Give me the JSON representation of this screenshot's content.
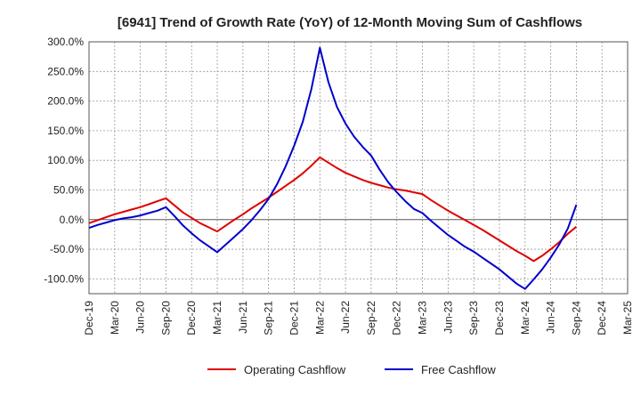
{
  "chart_data": {
    "type": "line",
    "title": "[6941]  Trend of Growth Rate (YoY) of 12-Month Moving Sum of Cashflows",
    "xlabel": "",
    "ylabel": "",
    "x_tick_labels": [
      "Dec-19",
      "Mar-20",
      "Jun-20",
      "Sep-20",
      "Dec-20",
      "Mar-21",
      "Jun-21",
      "Sep-21",
      "Dec-21",
      "Mar-22",
      "Jun-22",
      "Sep-22",
      "Dec-22",
      "Mar-23",
      "Jun-23",
      "Sep-23",
      "Dec-23",
      "Mar-24",
      "Jun-24",
      "Sep-24",
      "Dec-24",
      "Mar-25"
    ],
    "y_ticks": [
      300,
      250,
      200,
      150,
      100,
      50,
      0,
      -50,
      -100
    ],
    "y_tick_labels": [
      "300.0%",
      "250.0%",
      "200.0%",
      "150.0%",
      "100.0%",
      "50.0%",
      "0.0%",
      "-50.0%",
      "-100.0%"
    ],
    "ylim": [
      -125,
      300
    ],
    "grid": true,
    "legend_position": "bottom",
    "series": [
      {
        "name": "Operating Cashflow",
        "color": "#e00000",
        "x": [
          "Dec-19",
          "Jan-20",
          "Feb-20",
          "Mar-20",
          "Apr-20",
          "May-20",
          "Jun-20",
          "Jul-20",
          "Aug-20",
          "Sep-20",
          "Oct-20",
          "Nov-20",
          "Dec-20",
          "Jan-21",
          "Feb-21",
          "Mar-21",
          "Apr-21",
          "May-21",
          "Jun-21",
          "Jul-21",
          "Aug-21",
          "Sep-21",
          "Oct-21",
          "Nov-21",
          "Dec-21",
          "Jan-22",
          "Feb-22",
          "Mar-22",
          "Apr-22",
          "May-22",
          "Jun-22",
          "Jul-22",
          "Aug-22",
          "Sep-22",
          "Oct-22",
          "Nov-22",
          "Dec-22",
          "Jan-23",
          "Feb-23",
          "Mar-23",
          "Apr-23",
          "May-23",
          "Jun-23",
          "Jul-23",
          "Aug-23",
          "Sep-23",
          "Oct-23",
          "Nov-23",
          "Dec-23",
          "Jan-24",
          "Feb-24",
          "Mar-24",
          "Apr-24",
          "May-24",
          "Jun-24",
          "Jul-24",
          "Aug-24",
          "Sep-24"
        ],
        "values": [
          -6,
          -1,
          4,
          9,
          13,
          17,
          21,
          26,
          31,
          36,
          24,
          12,
          3,
          -6,
          -13,
          -20,
          -10,
          0,
          9,
          19,
          28,
          37,
          47,
          57,
          67,
          78,
          91,
          105,
          96,
          87,
          79,
          73,
          67,
          62,
          58,
          54,
          51,
          49,
          46,
          43,
          33,
          24,
          15,
          7,
          -1,
          -9,
          -17,
          -26,
          -35,
          -44,
          -53,
          -61,
          -70,
          -61,
          -50,
          -38,
          -24,
          -12
        ]
      },
      {
        "name": "Free Cashflow",
        "color": "#0000cc",
        "x": [
          "Dec-19",
          "Jan-20",
          "Feb-20",
          "Mar-20",
          "Apr-20",
          "May-20",
          "Jun-20",
          "Jul-20",
          "Aug-20",
          "Sep-20",
          "Oct-20",
          "Nov-20",
          "Dec-20",
          "Jan-21",
          "Feb-21",
          "Mar-21",
          "Apr-21",
          "May-21",
          "Jun-21",
          "Jul-21",
          "Aug-21",
          "Sep-21",
          "Oct-21",
          "Nov-21",
          "Dec-21",
          "Jan-22",
          "Feb-22",
          "Mar-22",
          "Apr-22",
          "May-22",
          "Jun-22",
          "Jul-22",
          "Aug-22",
          "Sep-22",
          "Oct-22",
          "Nov-22",
          "Dec-22",
          "Jan-23",
          "Feb-23",
          "Mar-23",
          "Apr-23",
          "May-23",
          "Jun-23",
          "Jul-23",
          "Aug-23",
          "Sep-23",
          "Oct-23",
          "Nov-23",
          "Dec-23",
          "Jan-24",
          "Feb-24",
          "Mar-24",
          "Apr-24",
          "May-24",
          "Jun-24",
          "Jul-24",
          "Aug-24",
          "Sep-24"
        ],
        "values": [
          -14,
          -9,
          -5,
          -1,
          2,
          4,
          7,
          11,
          15,
          21,
          6,
          -10,
          -23,
          -35,
          -45,
          -55,
          -42,
          -29,
          -16,
          -1,
          16,
          35,
          60,
          90,
          125,
          165,
          220,
          290,
          232,
          190,
          162,
          140,
          123,
          108,
          84,
          63,
          46,
          31,
          18,
          11,
          -2,
          -14,
          -26,
          -36,
          -46,
          -54,
          -64,
          -74,
          -84,
          -96,
          -108,
          -117,
          -101,
          -84,
          -64,
          -42,
          -15,
          25
        ]
      }
    ]
  }
}
